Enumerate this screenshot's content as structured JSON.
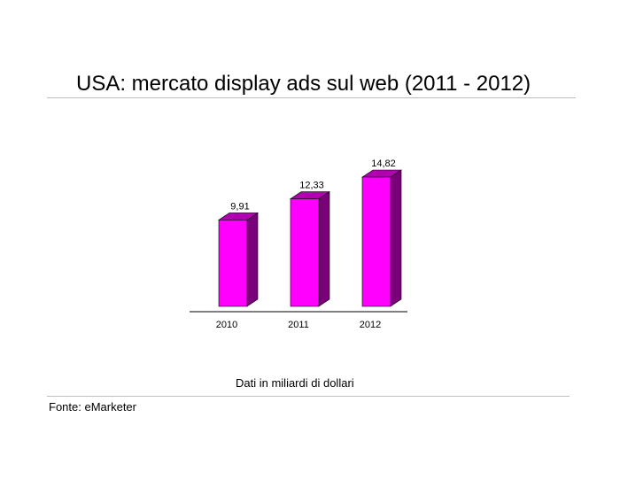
{
  "title": "USA: mercato display ads sul web (2011 - 2012)",
  "note": "Dati in miliardi di dollari",
  "source": "Fonte: eMarketer",
  "chart_data": {
    "type": "bar",
    "categories": [
      "2010",
      "2011",
      "2012"
    ],
    "values": [
      9.91,
      12.33,
      14.82
    ],
    "value_labels": [
      "9,91",
      "12,33",
      "14,82"
    ],
    "ylim": [
      0,
      14.82
    ],
    "grid": false,
    "legend": "none",
    "colors": {
      "front": "#ff00ff",
      "side": "#7a007a",
      "top": "#b000b0"
    }
  }
}
